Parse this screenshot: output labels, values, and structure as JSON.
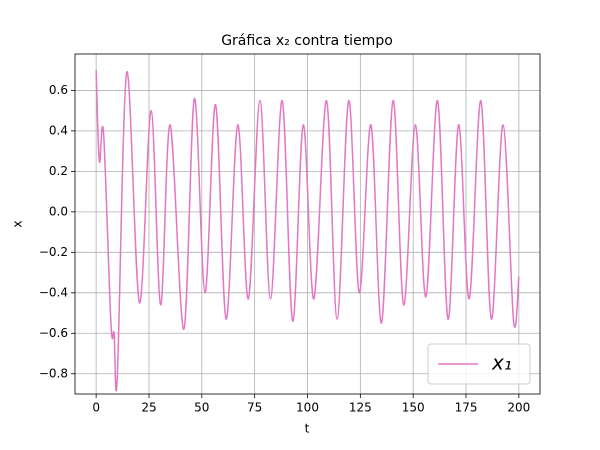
{
  "chart_data": {
    "type": "line",
    "title": "Gráfica x₂ contra tiempo",
    "x_label": "t",
    "y_label": "x",
    "x": [
      0,
      1.5,
      3.5,
      7,
      8.5,
      10,
      14.5,
      20.5,
      26,
      30.5,
      35,
      41.5,
      46.5,
      51.5,
      56.5,
      61.5,
      67,
      72,
      77.5,
      82.5,
      88,
      93,
      98,
      103,
      109,
      114,
      119.5,
      124.5,
      130,
      135,
      140.5,
      145.5,
      151,
      156,
      161.5,
      166.5,
      171.5,
      176.5,
      182,
      187,
      192.5,
      197.5,
      200
    ],
    "series": [
      {
        "name": "x₁",
        "color": "#e377c2",
        "values": [
          0.7,
          0.25,
          0.39,
          -0.55,
          -0.6,
          -0.82,
          0.69,
          -0.45,
          0.5,
          -0.46,
          0.43,
          -0.58,
          0.56,
          -0.4,
          0.53,
          -0.53,
          0.43,
          -0.43,
          0.55,
          -0.43,
          0.55,
          -0.54,
          0.43,
          -0.43,
          0.55,
          -0.53,
          0.55,
          -0.4,
          0.43,
          -0.55,
          0.55,
          -0.46,
          0.43,
          -0.42,
          0.55,
          -0.53,
          0.43,
          -0.43,
          0.55,
          -0.53,
          0.43,
          -0.54,
          -0.32
        ]
      }
    ],
    "xlim": [
      -10,
      210
    ],
    "ylim": [
      -0.9,
      0.78
    ],
    "xticks": [
      0,
      25,
      50,
      75,
      100,
      125,
      150,
      175,
      200
    ],
    "yticks": [
      {
        "value": -0.8,
        "label": "−0.8"
      },
      {
        "value": -0.6,
        "label": "−0.6"
      },
      {
        "value": -0.4,
        "label": "−0.4"
      },
      {
        "value": -0.2,
        "label": "−0.2"
      },
      {
        "value": 0,
        "label": "0.0"
      },
      0.2,
      0.4,
      0.6
    ],
    "grid": true,
    "legend": "lower right"
  }
}
